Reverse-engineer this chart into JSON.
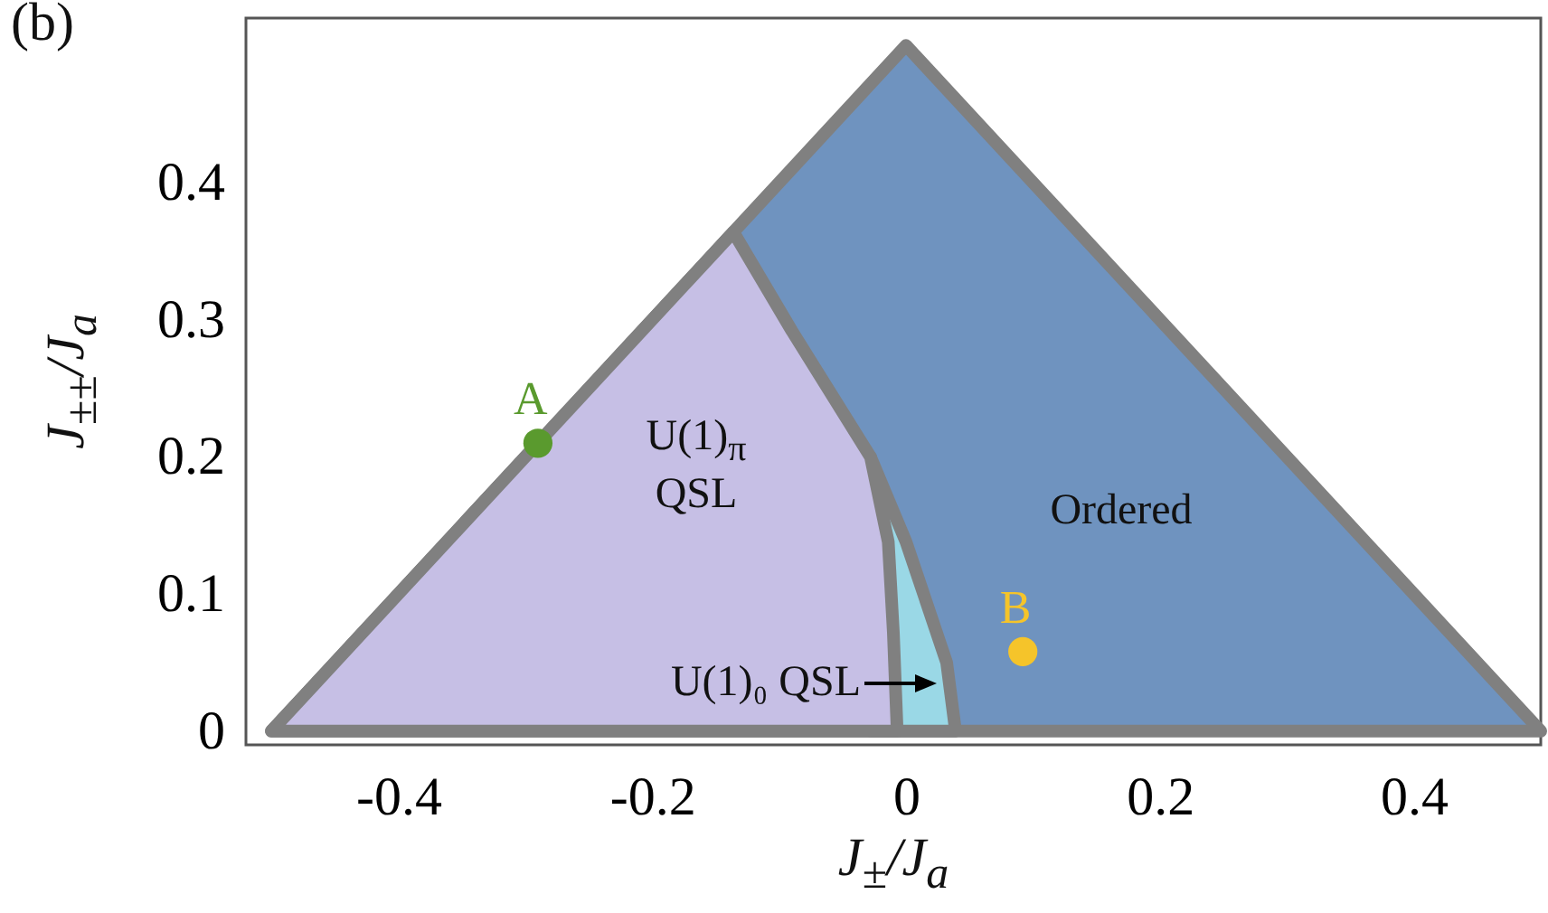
{
  "chart_data": {
    "type": "area",
    "title": "(b)",
    "xlabel": "J$_{±}$/J$_{a}$",
    "ylabel": "J$_{±±}$/J$_{a}$",
    "xlim": [
      -0.52,
      0.5
    ],
    "ylim": [
      -0.01,
      0.52
    ],
    "xticks": [
      -0.4,
      -0.2,
      0,
      0.2,
      0.4
    ],
    "yticks": [
      0,
      0.1,
      0.2,
      0.3,
      0.4
    ],
    "grid": false,
    "series": [
      {
        "color": "#6f93bf",
        "x": [
          -0.5,
          0,
          0.5
        ],
        "values": [
          0,
          0.5,
          0
        ]
      },
      {
        "color": "#9ad8e6",
        "x": [
          -0.028,
          0,
          0.032,
          0.039
        ],
        "values": [
          0.2,
          0.138,
          0.05,
          0
        ]
      },
      {
        "color": "#c6bfe5",
        "x": [
          -0.5,
          -0.136,
          -0.09,
          -0.028,
          -0.014,
          -0.01,
          -0.007
        ],
        "values": [
          0,
          0.364,
          0.292,
          0.2,
          0.138,
          0.072,
          0
        ]
      },
      {
        "type": "scatter",
        "name": "A",
        "color": "#5a9a2e",
        "x": [
          -0.29
        ],
        "values": [
          0.21
        ]
      },
      {
        "type": "scatter",
        "name": "B",
        "color": "#f5c42a",
        "x": [
          0.092
        ],
        "values": [
          0.058
        ]
      }
    ],
    "annotations": [
      "Ordered",
      "U(1)$_{π}$ QSL",
      "U(1)₀ QSL"
    ]
  }
}
